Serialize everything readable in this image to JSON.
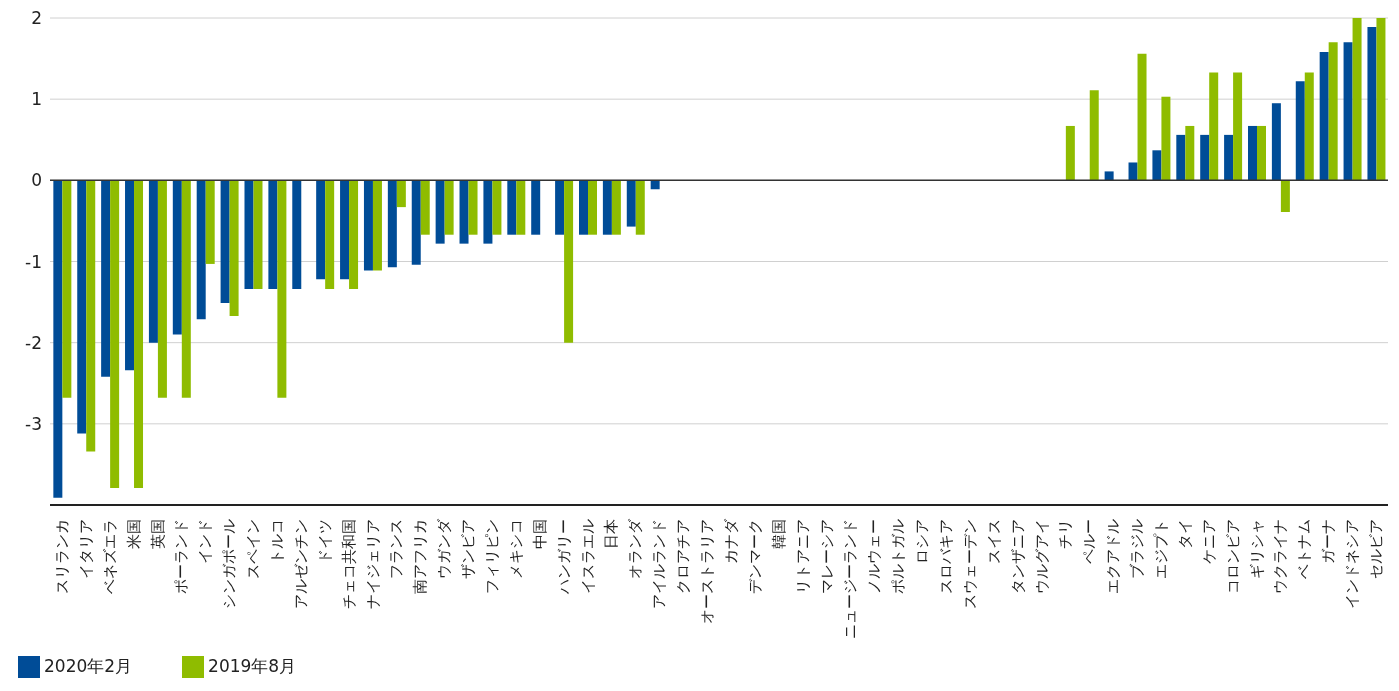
{
  "chart_data": {
    "type": "bar",
    "categories": [
      "スリランカ",
      "イタリア",
      "ベネズエラ",
      "米国",
      "英国",
      "ポーランド",
      "インド",
      "シンガポール",
      "スペイン",
      "トルコ",
      "アルゼンチン",
      "ドイツ",
      "チェコ共和国",
      "ナイジェリア",
      "フランス",
      "南アフリカ",
      "ウガンダ",
      "ザンビア",
      "フィリピン",
      "メキシコ",
      "中国",
      "ハンガリー",
      "イスラエル",
      "日本",
      "オランダ",
      "アイルランド",
      "クロアチア",
      "オーストラリア",
      "カナダ",
      "デンマーク",
      "韓国",
      "リトアニア",
      "マレーシア",
      "ニュージーランド",
      "ノルウェー",
      "ポルトガル",
      "ロシア",
      "スロバキア",
      "スウェーデン",
      "スイス",
      "タンザニア",
      "ウルグアイ",
      "チリ",
      "ペルー",
      "エクアドル",
      "ブラジル",
      "エジプト",
      "タイ",
      "ケニア",
      "コロンビア",
      "ギリシャ",
      "ウクライナ",
      "ベトナム",
      "ガーナ",
      "インドネシア",
      "セルビア"
    ],
    "series": [
      {
        "name": "2020年2月",
        "color": "#004c97",
        "values": [
          -3.91,
          -3.12,
          -2.42,
          -2.34,
          -2.0,
          -1.9,
          -1.71,
          -1.51,
          -1.34,
          -1.34,
          -1.34,
          -1.22,
          -1.22,
          -1.11,
          -1.07,
          -1.04,
          -0.78,
          -0.78,
          -0.78,
          -0.67,
          -0.67,
          -0.67,
          -0.67,
          -0.67,
          -0.57,
          -0.11,
          null,
          null,
          null,
          null,
          null,
          null,
          null,
          null,
          null,
          null,
          null,
          null,
          null,
          null,
          null,
          null,
          null,
          null,
          0.11,
          0.22,
          0.37,
          0.56,
          0.56,
          0.56,
          0.67,
          0.95,
          1.22,
          1.58,
          1.7,
          1.89
        ]
      },
      {
        "name": "2019年8月",
        "color": "#8fbc00",
        "values": [
          -2.68,
          -3.34,
          -3.79,
          -3.79,
          -2.68,
          -2.68,
          -1.03,
          -1.67,
          -1.34,
          -2.68,
          null,
          -1.34,
          -1.34,
          -1.11,
          -0.33,
          -0.67,
          -0.67,
          -0.67,
          -0.67,
          -0.67,
          null,
          -2.0,
          -0.67,
          -0.67,
          -0.67,
          null,
          null,
          null,
          null,
          null,
          null,
          null,
          null,
          null,
          null,
          null,
          null,
          null,
          null,
          null,
          null,
          null,
          0.67,
          1.11,
          null,
          1.56,
          1.03,
          0.67,
          1.33,
          1.33,
          0.67,
          -0.39,
          1.33,
          1.7,
          2.0,
          2.0
        ]
      }
    ],
    "ylim": [
      -4,
      2
    ],
    "yticks": [
      -3,
      -2,
      -1,
      0,
      1,
      2
    ],
    "grid": "y",
    "legend": "bottom left",
    "ref_lines": [
      {
        "axis": "y",
        "value": 0,
        "color": "#333333"
      }
    ]
  }
}
